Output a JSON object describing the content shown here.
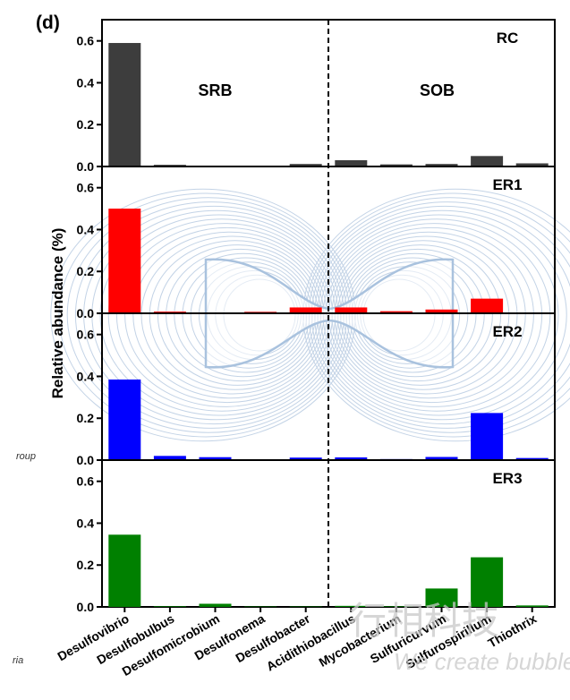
{
  "panel_label": "(d)",
  "watermark": {
    "line1": "行相科技",
    "line2": "We create bubbles",
    "side_fragment_1": "roup",
    "side_fragment_2": "ria"
  },
  "chart_data": {
    "type": "bar",
    "ylabel": "Relative abundance (%)",
    "xlabel": "",
    "ylim": [
      0,
      0.65
    ],
    "yticks": [
      0.0,
      0.2,
      0.4,
      0.6
    ],
    "ytick_labels": [
      "0.0",
      "0.2",
      "0.4",
      "0.6"
    ],
    "categories": [
      "Desulfovibrio",
      "Desulfobulbus",
      "Desulfomicrobium",
      "Desulfonema",
      "Desulfobacter",
      "Acidithiobacillus",
      "Mycobacterium",
      "Sulfuricurvum",
      "Sulfurospirillum",
      "Thiothrix"
    ],
    "groups": [
      {
        "name": "SRB",
        "categories": [
          "Desulfovibrio",
          "Desulfobulbus",
          "Desulfomicrobium",
          "Desulfonema",
          "Desulfobacter"
        ]
      },
      {
        "name": "SOB",
        "categories": [
          "Acidithiobacillus",
          "Mycobacterium",
          "Sulfuricurvum",
          "Sulfurospirillum",
          "Thiothrix"
        ]
      }
    ],
    "series": [
      {
        "name": "RC",
        "color": "#3d3d3d",
        "values": [
          0.59,
          0.008,
          0.002,
          0.002,
          0.012,
          0.03,
          0.01,
          0.012,
          0.05,
          0.015
        ]
      },
      {
        "name": "ER1",
        "color": "#ff0000",
        "values": [
          0.5,
          0.008,
          0.003,
          0.007,
          0.028,
          0.028,
          0.01,
          0.018,
          0.07,
          0.003
        ]
      },
      {
        "name": "ER2",
        "color": "#0000ff",
        "values": [
          0.385,
          0.02,
          0.014,
          0.003,
          0.012,
          0.013,
          0.005,
          0.015,
          0.225,
          0.01
        ]
      },
      {
        "name": "ER3",
        "color": "#008000",
        "values": [
          0.345,
          0.003,
          0.015,
          0.002,
          0.002,
          0.005,
          0.003,
          0.088,
          0.237,
          0.007
        ]
      }
    ]
  }
}
